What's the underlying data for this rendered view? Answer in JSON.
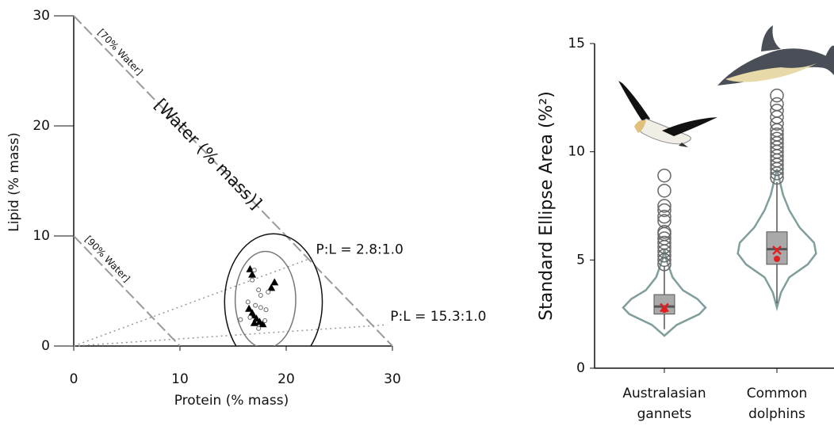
{
  "chart_data": [
    {
      "type": "scatter",
      "xlabel": "Protein (% mass)",
      "ylabel": "Lipid (% mass)",
      "xlim": [
        0,
        30
      ],
      "ylim": [
        0,
        30
      ],
      "xticks": [
        0,
        10,
        20,
        30
      ],
      "yticks": [
        0,
        10,
        20,
        30
      ],
      "water_lines": [
        {
          "sum": 30,
          "label": "[70% Water]"
        },
        {
          "sum": 10,
          "label": "[90% Water]"
        }
      ],
      "water_title": "[Water (% mass)]",
      "ratio_lines": [
        {
          "ratio": 2.8,
          "end": 22.5,
          "label": "P:L = 2.8:1.0"
        },
        {
          "ratio": 15.3,
          "end": 29.5,
          "label": "P:L = 15.3:1.0"
        }
      ],
      "ellipses": [
        {
          "cx": 18.8,
          "cy": 4.0,
          "rx": 4.6,
          "ry": 6.2,
          "color": "#111"
        },
        {
          "cx": 18.05,
          "cy": 4.2,
          "rx": 2.85,
          "ry": 4.4,
          "color": "#777"
        }
      ],
      "series": [
        {
          "marker": "triangle",
          "color": "#000",
          "x": [
            16.6,
            16.8,
            18.9,
            18.6,
            16.5,
            16.9,
            17.2,
            17.0,
            17.5,
            17.8,
            16.8
          ],
          "y": [
            7.0,
            6.5,
            5.8,
            5.3,
            3.4,
            2.8,
            2.5,
            2.1,
            2.2,
            2.0,
            3.0
          ]
        },
        {
          "marker": "circle",
          "color": "#666",
          "x": [
            16.4,
            17.0,
            16.8,
            17.4,
            17.6,
            18.3,
            17.6,
            18.1,
            17.1,
            16.6,
            15.7,
            18.0,
            17.4
          ],
          "y": [
            4.0,
            6.9,
            6.0,
            5.1,
            4.6,
            4.9,
            3.5,
            3.3,
            3.7,
            2.6,
            2.4,
            2.3,
            1.6
          ]
        }
      ]
    },
    {
      "type": "violin",
      "ylabel": "Standard Ellipse Area (%²)",
      "ylim": [
        0,
        15
      ],
      "yticks": [
        0,
        5,
        10,
        15
      ],
      "categories": [
        "Australasian gannets",
        "Common dolphins"
      ],
      "groups": [
        {
          "violin": {
            "y": [
              1.5,
              2.0,
              2.5,
              2.8,
              3.2,
              3.6,
              4.2,
              5.0,
              5.5
            ],
            "width": [
              0,
              0.3,
              0.85,
              1.0,
              0.8,
              0.45,
              0.2,
              0.05,
              0
            ]
          },
          "whisker_low": 1.8,
          "q1": 2.5,
          "median": 2.85,
          "q3": 3.4,
          "whisker_high": 4.7,
          "mean": 2.8,
          "dot": 2.7,
          "outliers": [
            4.8,
            5.0,
            5.2,
            5.4,
            5.6,
            5.8,
            6.0,
            6.2,
            6.3,
            6.8,
            7.0,
            7.3,
            7.5,
            8.2,
            8.9
          ]
        },
        {
          "violin": {
            "y": [
              2.8,
              3.5,
              4.2,
              4.8,
              5.3,
              5.8,
              6.5,
              7.3,
              8.0,
              8.8,
              9.2
            ],
            "width": [
              0,
              0.1,
              0.3,
              0.75,
              0.95,
              0.9,
              0.55,
              0.3,
              0.15,
              0.05,
              0
            ]
          },
          "whisker_low": 3.0,
          "q1": 4.8,
          "median": 5.5,
          "q3": 6.3,
          "whisker_high": 8.6,
          "mean": 5.45,
          "dot": 5.05,
          "outliers": [
            8.8,
            9.0,
            9.2,
            9.4,
            9.6,
            9.8,
            10.0,
            10.2,
            10.4,
            10.6,
            10.8,
            11.0,
            11.3,
            11.6,
            11.9,
            12.2,
            12.6
          ]
        }
      ]
    }
  ]
}
